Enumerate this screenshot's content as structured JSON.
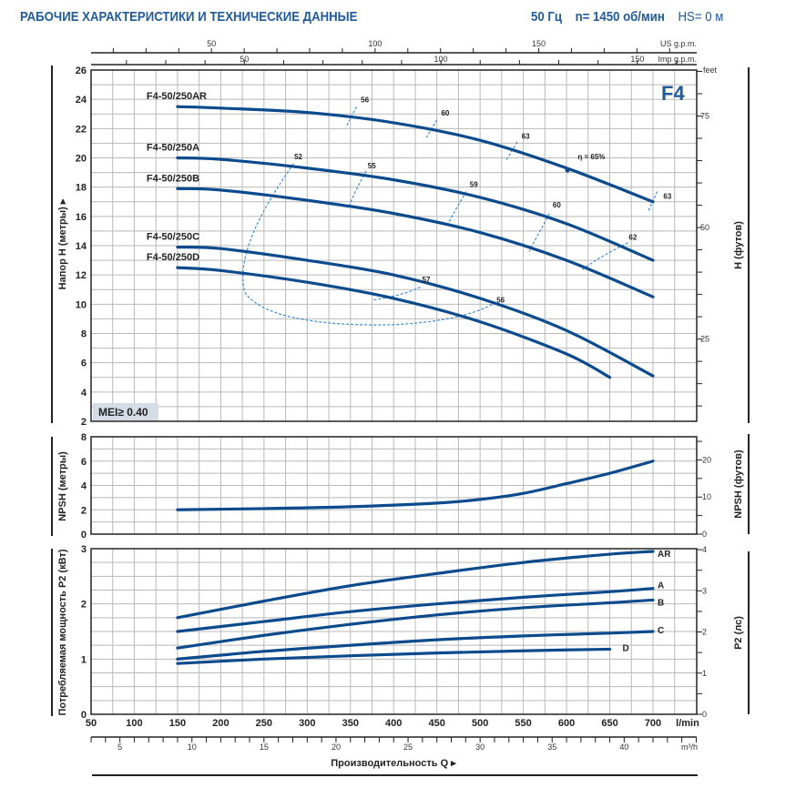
{
  "header": {
    "title": "РАБОЧИЕ ХАРАКТЕРИСТИКИ И ТЕХНИЧЕСКИЕ ДАННЫЕ",
    "frequency": "50 Гц",
    "speed": "n= 1450 об/мин",
    "hs": "HS= 0 м"
  },
  "series_badge": "F4",
  "mei_badge": "MEI≥ 0.40",
  "colors": {
    "curve": "#0b4a8c",
    "efficiency": "#2f86d1",
    "grid": "#b9b9b9",
    "title": "#1f5a9a",
    "badge_bg": "#d4dde6"
  },
  "chart_data": [
    {
      "type": "line",
      "title": "Head curves",
      "xlabel": "Производительность Q",
      "ylabel": "Напор H (метры)",
      "ylabel_right": "H (футов)",
      "xlim": [
        50,
        750
      ],
      "ylim": [
        2,
        26
      ],
      "yticks": [
        2,
        4,
        6,
        8,
        10,
        12,
        14,
        16,
        18,
        20,
        22,
        24,
        26
      ],
      "y2_unit": "feet",
      "y2_ticks": [
        25,
        50,
        75
      ],
      "grid": true,
      "series": [
        {
          "name": "F4-50/250AR",
          "x": [
            150,
            200,
            300,
            400,
            500,
            600,
            700
          ],
          "y": [
            23.5,
            23.4,
            23.1,
            22.4,
            21.2,
            19.3,
            17.0
          ]
        },
        {
          "name": "F4-50/250A",
          "x": [
            150,
            200,
            300,
            400,
            500,
            600,
            700
          ],
          "y": [
            20.0,
            19.9,
            19.3,
            18.5,
            17.3,
            15.5,
            13.0
          ]
        },
        {
          "name": "F4-50/250B",
          "x": [
            150,
            200,
            300,
            400,
            500,
            600,
            700
          ],
          "y": [
            17.9,
            17.8,
            17.1,
            16.2,
            14.9,
            13.0,
            10.5
          ]
        },
        {
          "name": "F4-50/250C",
          "x": [
            150,
            200,
            300,
            400,
            500,
            600,
            700
          ],
          "y": [
            13.9,
            13.8,
            13.0,
            12.0,
            10.4,
            8.2,
            5.1
          ]
        },
        {
          "name": "F4-50/250D",
          "x": [
            150,
            200,
            300,
            400,
            500,
            600,
            650
          ],
          "y": [
            12.5,
            12.3,
            11.5,
            10.4,
            8.8,
            6.6,
            5.0
          ]
        }
      ],
      "efficiency_marks": [
        {
          "label": "56",
          "x": 355,
          "y": 22.9
        },
        {
          "label": "60",
          "x": 445,
          "y": 22.1
        },
        {
          "label": "63",
          "x": 537,
          "y": 20.6
        },
        {
          "label": "η = 65%",
          "x": 601,
          "y": 19.2
        },
        {
          "label": "63",
          "x": 700,
          "y": 17.0
        },
        {
          "label": "52",
          "x": 285,
          "y": 19.4
        },
        {
          "label": "55",
          "x": 368,
          "y": 18.9
        },
        {
          "label": "59",
          "x": 480,
          "y": 17.6
        },
        {
          "label": "60",
          "x": 576,
          "y": 16.0
        },
        {
          "label": "62",
          "x": 667,
          "y": 14.0
        },
        {
          "label": "57",
          "x": 430,
          "y": 10.9
        },
        {
          "label": "56",
          "x": 515,
          "y": 9.9
        }
      ],
      "annotations": [
        "F4",
        "MEI≥ 0.40"
      ]
    },
    {
      "type": "line",
      "title": "NPSH",
      "ylabel": "NPSH (метры)",
      "ylabel_right": "NPSH (футов)",
      "xlim": [
        50,
        750
      ],
      "ylim": [
        0,
        8
      ],
      "yticks": [
        0,
        2,
        4,
        6,
        8
      ],
      "y2_ticks": [
        0,
        10,
        20
      ],
      "grid": true,
      "series": [
        {
          "name": "NPSH",
          "x": [
            150,
            250,
            350,
            450,
            500,
            550,
            600,
            650,
            700
          ],
          "y": [
            2.0,
            2.1,
            2.25,
            2.55,
            2.85,
            3.35,
            4.15,
            5.0,
            6.0
          ]
        }
      ]
    },
    {
      "type": "line",
      "title": "Power",
      "ylabel": "Потребляемая мощность P2 (кВт)",
      "ylabel_right": "P2 (лс)",
      "xlabel": "Производительность Q",
      "xunit": "l/min",
      "xlim": [
        50,
        750
      ],
      "ylim": [
        0,
        3
      ],
      "yticks": [
        0,
        1,
        2,
        3
      ],
      "y2_ticks": [
        0,
        1,
        2,
        3,
        4
      ],
      "xticks": [
        50,
        100,
        150,
        200,
        250,
        300,
        350,
        400,
        450,
        500,
        550,
        600,
        650,
        700
      ],
      "grid": true,
      "series": [
        {
          "name": "AR",
          "x": [
            150,
            250,
            350,
            450,
            550,
            650,
            700
          ],
          "y": [
            1.75,
            2.05,
            2.33,
            2.55,
            2.75,
            2.9,
            2.95
          ]
        },
        {
          "name": "A",
          "x": [
            150,
            250,
            350,
            450,
            550,
            650,
            700
          ],
          "y": [
            1.5,
            1.68,
            1.86,
            2.0,
            2.12,
            2.22,
            2.28
          ]
        },
        {
          "name": "B",
          "x": [
            150,
            250,
            350,
            450,
            550,
            650,
            700
          ],
          "y": [
            1.2,
            1.43,
            1.63,
            1.8,
            1.93,
            2.02,
            2.07
          ]
        },
        {
          "name": "C",
          "x": [
            150,
            250,
            350,
            450,
            550,
            650,
            700
          ],
          "y": [
            1.0,
            1.14,
            1.25,
            1.35,
            1.42,
            1.47,
            1.5
          ]
        },
        {
          "name": "D",
          "x": [
            150,
            250,
            350,
            450,
            550,
            650
          ],
          "y": [
            0.92,
            1.0,
            1.06,
            1.11,
            1.15,
            1.18
          ]
        }
      ]
    }
  ],
  "axes": {
    "us_gpm": {
      "label": "US g.p.m.",
      "ticks": [
        "50",
        "100",
        "150"
      ]
    },
    "imp_gpm": {
      "label": "Imp g.p.m.",
      "ticks": [
        "50",
        "100",
        "150"
      ]
    },
    "lmin": {
      "label": "l/min",
      "ticks": [
        "50",
        "100",
        "150",
        "200",
        "250",
        "300",
        "350",
        "400",
        "450",
        "500",
        "550",
        "600",
        "650",
        "700"
      ]
    },
    "m3h": {
      "label": "m³/h",
      "ticks": [
        "5",
        "10",
        "15",
        "20",
        "25",
        "30",
        "35",
        "40"
      ]
    },
    "h_feet": {
      "label": "feet",
      "ticks": [
        "25",
        "50",
        "75"
      ]
    },
    "npsh_feet": {
      "ticks": [
        "0",
        "10",
        "20"
      ]
    },
    "p2_hp": {
      "ticks": [
        "0",
        "1",
        "2",
        "3",
        "4"
      ]
    },
    "x_title": "Производительность Q",
    "h_title": "Напор H (метры)",
    "h_right_title": "H (футов)",
    "npsh_title": "NPSH (метры)",
    "npsh_right_title": "NPSH (футов)",
    "p2_title": "Потребляемая мощность P2 (кВт)",
    "p2_right_title": "P2 (лс)"
  }
}
